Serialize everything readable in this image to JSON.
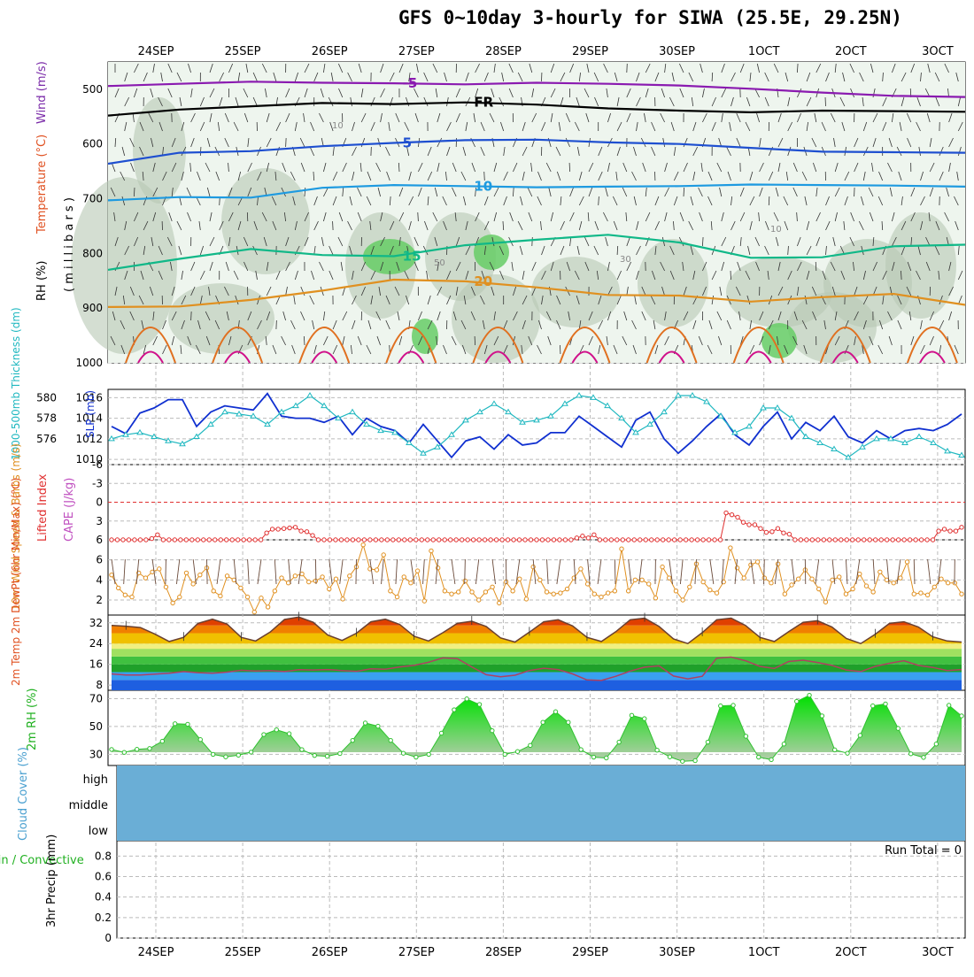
{
  "title": "GFS 0~10day 3-hourly for SIWA (25.5E, 29.25N)",
  "date_labels": [
    "24SEP",
    "25SEP",
    "26SEP",
    "27SEP",
    "28SEP",
    "29SEP",
    "30SEP",
    "1OCT",
    "2OCT",
    "3OCT"
  ],
  "run_total_text": "Run Total = 0",
  "colors": {
    "rh": "#28b428",
    "temp_label": "#e05020",
    "wind_label": "#7a2aa8",
    "blue": "#2030d0",
    "cyan": "#20b0c0",
    "red": "#e03030",
    "orange": "#e08000",
    "green": "#20b020",
    "cloud": "#6aaed6",
    "grid": "#bbbbbb"
  },
  "chart_data": [
    {
      "type": "heatmap",
      "panel": "upper_air",
      "axis_label_parts": {
        "rh": "RH (%)",
        "temp": "Temperature (°C)",
        "wind": "Wind (m/s)",
        "pressure": "( m i l l i b a r s )"
      },
      "yticks": [
        500,
        600,
        700,
        800,
        900,
        1000
      ],
      "ylim": [
        1000,
        450
      ],
      "isotherm_labels": {
        "minus5": "-5",
        "fr": "FR",
        "five": "5",
        "ten": "10",
        "fifteen": "15",
        "twenty": "20",
        "rh50": "50",
        "rh30": "30",
        "rh10": "10"
      },
      "isotherms": [
        {
          "name": "-5",
          "color": "#8a1ab0",
          "p": [
            494,
            490,
            486,
            488,
            489,
            491,
            488,
            490,
            493,
            499,
            506,
            512,
            514
          ]
        },
        {
          "name": "FR",
          "color": "#000000",
          "p": [
            548,
            537,
            531,
            525,
            527,
            524,
            528,
            535,
            539,
            542,
            539,
            540,
            541
          ]
        },
        {
          "name": "5",
          "color": "#1e4fd0",
          "p": [
            636,
            616,
            613,
            604,
            598,
            593,
            592,
            597,
            600,
            607,
            614,
            615,
            616
          ]
        },
        {
          "name": "10",
          "color": "#1e9ae0",
          "p": [
            703,
            697,
            698,
            680,
            675,
            677,
            679,
            678,
            677,
            674,
            675,
            676,
            678
          ]
        },
        {
          "name": "15",
          "color": "#10b888",
          "p": [
            830,
            810,
            792,
            803,
            805,
            785,
            775,
            766,
            780,
            808,
            807,
            787,
            784
          ]
        },
        {
          "name": "20",
          "color": "#e09020",
          "p": [
            898,
            897,
            885,
            868,
            848,
            851,
            862,
            876,
            877,
            888,
            880,
            874,
            894
          ]
        }
      ]
    },
    {
      "type": "line",
      "panel": "thickness_slp",
      "ylabel_left": "1000-500mb Thickness (dm)",
      "ylabel_right": "SLP (mb)",
      "yticks_left": [
        576,
        578,
        580
      ],
      "yticks_right": [
        1010,
        1012,
        1014,
        1016
      ],
      "ylim": [
        1009.5,
        1016.8
      ],
      "series": [
        {
          "name": "SLP (mb)",
          "color": "#1030d0",
          "values": [
            1013.2,
            1012.5,
            1014.5,
            1015.0,
            1015.8,
            1015.8,
            1013.2,
            1014.6,
            1015.2,
            1015.0,
            1014.8,
            1016.4,
            1014.2,
            1014.0,
            1014.0,
            1013.6,
            1014.2,
            1012.4,
            1014.0,
            1013.2,
            1012.8,
            1011.6,
            1013.4,
            1011.8,
            1010.2,
            1011.8,
            1012.2,
            1011.0,
            1012.4,
            1011.4,
            1011.6,
            1012.6,
            1012.6,
            1014.2,
            1013.2,
            1012.2,
            1011.2,
            1013.8,
            1014.6,
            1012.0,
            1010.6,
            1011.8,
            1013.2,
            1014.4,
            1012.4,
            1011.4,
            1013.2,
            1014.6,
            1012.0,
            1013.6,
            1012.8,
            1014.2,
            1012.2,
            1011.6,
            1012.8,
            1012.0,
            1012.8,
            1013.0,
            1012.8,
            1013.4,
            1014.4
          ]
        },
        {
          "name": "1000-500mb Thickness (dm)",
          "color": "#20b8c0",
          "marker": "triangle",
          "values": [
            1012.0,
            1012.4,
            1012.6,
            1012.2,
            1011.8,
            1011.5,
            1012.2,
            1013.4,
            1014.6,
            1014.4,
            1014.2,
            1013.4,
            1014.6,
            1015.2,
            1016.2,
            1015.2,
            1014.0,
            1014.6,
            1013.4,
            1012.8,
            1012.6,
            1011.6,
            1010.6,
            1011.2,
            1012.4,
            1013.8,
            1014.6,
            1015.4,
            1014.6,
            1013.6,
            1013.8,
            1014.2,
            1015.4,
            1016.2,
            1016.0,
            1015.2,
            1014.0,
            1012.6,
            1013.4,
            1014.6,
            1016.2,
            1016.2,
            1015.6,
            1014.2,
            1012.6,
            1013.2,
            1015.0,
            1015.0,
            1014.0,
            1012.2,
            1011.6,
            1011.0,
            1010.2,
            1011.2,
            1012.0,
            1012.0,
            1011.6,
            1012.2,
            1011.6,
            1010.8,
            1010.4
          ]
        }
      ]
    },
    {
      "type": "line",
      "panel": "cape_li",
      "ylabel_left": "Lifted Index",
      "ylabel_right": "CAPE (J/kg)",
      "yticks": [
        -6,
        -3,
        0,
        3,
        6
      ],
      "ylim": [
        6,
        -6
      ],
      "series": [
        {
          "name": "Lifted Index",
          "color": "#e03030",
          "values": [
            6,
            6,
            6,
            6,
            6,
            6,
            6,
            5.8,
            5.2,
            6,
            6,
            6,
            6,
            6,
            6,
            6,
            6,
            6,
            6,
            6,
            6,
            6,
            6,
            6,
            6,
            6,
            6,
            4.9,
            4.3,
            4.3,
            4.2,
            4.1,
            4.0,
            4.6,
            4.7,
            5.3,
            6,
            6,
            6,
            6,
            6,
            6,
            6,
            6,
            6,
            6,
            6,
            6,
            6,
            6,
            6,
            6,
            6,
            6,
            6,
            6,
            6,
            6,
            6,
            6,
            6,
            6,
            6,
            6,
            6,
            6,
            6,
            6,
            6,
            6,
            6,
            6,
            6,
            6,
            6,
            6,
            6,
            6,
            6,
            6,
            6,
            5.7,
            5.4,
            5.7,
            5.2,
            6,
            6,
            6,
            6,
            6,
            6,
            6,
            6,
            6,
            6,
            6,
            6,
            6,
            6,
            6,
            6,
            6,
            6,
            6,
            6,
            6,
            6,
            1.7,
            2.0,
            2.4,
            3.2,
            3.6,
            3.6,
            4.2,
            4.8,
            4.7,
            4.2,
            4.9,
            5.1,
            6,
            6,
            6,
            6,
            6,
            6,
            6,
            6,
            6,
            6,
            6,
            6,
            6,
            6,
            6,
            6,
            6,
            6,
            6,
            6,
            6,
            6,
            6,
            6,
            6,
            4.6,
            4.3,
            4.6,
            4.6,
            4.0
          ]
        }
      ]
    },
    {
      "type": "line",
      "panel": "wind10m",
      "ylabel": "10m Wind Speed & Barbs (m/s)",
      "yticks": [
        2,
        4,
        6
      ],
      "ylim": [
        0.5,
        8
      ],
      "series": [
        {
          "name": "10m Wind Speed",
          "color": "#e09020",
          "values": [
            4.5,
            3.2,
            2.5,
            2.3,
            4.7,
            4.2,
            4.8,
            5.1,
            3.3,
            1.7,
            2.3,
            4.7,
            3.6,
            4.5,
            5.2,
            2.9,
            2.4,
            4.4,
            4.0,
            3.2,
            2.3,
            0.8,
            2.2,
            1.3,
            2.9,
            4.2,
            3.7,
            4.4,
            4.6,
            3.8,
            3.9,
            4.3,
            3.1,
            4.1,
            2.1,
            4.4,
            5.3,
            7.5,
            5.1,
            5.0,
            6.5,
            2.9,
            2.3,
            4.3,
            3.7,
            4.9,
            1.9,
            6.9,
            5.2,
            2.9,
            2.6,
            2.8,
            3.9,
            2.8,
            2.0,
            2.8,
            3.3,
            1.7,
            3.8,
            2.9,
            4.1,
            2.1,
            5.3,
            4.0,
            2.8,
            2.6,
            2.7,
            3.1,
            4.2,
            5.1,
            3.6,
            2.6,
            2.3,
            2.7,
            2.9,
            7.1,
            2.9,
            4.0,
            4.0,
            3.6,
            2.2,
            5.3,
            4.2,
            2.9,
            2.0,
            3.3,
            5.6,
            3.8,
            3.0,
            2.7,
            3.8,
            7.2,
            5.2,
            4.2,
            5.5,
            5.8,
            4.2,
            3.7,
            5.6,
            2.6,
            3.5,
            4.1,
            5.0,
            4.1,
            3.1,
            1.8,
            4.0,
            4.3,
            2.6,
            3.1,
            4.6,
            3.4,
            2.8,
            4.8,
            4.0,
            3.7,
            4.2,
            5.8,
            2.6,
            2.7,
            2.5,
            3.3,
            4.1,
            3.7,
            3.7,
            2.6
          ]
        }
      ]
    },
    {
      "type": "area",
      "panel": "temp2m",
      "ylabel": "2m Temp 2m DewPt (6hr Min/Max) (°C)",
      "yticks": [
        8,
        16,
        24,
        32
      ],
      "ylim": [
        6,
        35
      ],
      "series": [
        {
          "name": "2m Temp",
          "color": "#6a4030",
          "values": [
            31.0,
            30.7,
            30.2,
            27.7,
            24.8,
            26.4,
            31.8,
            33.4,
            31.6,
            26.4,
            25.0,
            28.4,
            33.3,
            34.2,
            32.2,
            27.3,
            25.2,
            28.0,
            32.4,
            33.4,
            31.4,
            26.8,
            25.0,
            28.2,
            31.8,
            32.6,
            30.6,
            26.2,
            24.6,
            28.4,
            32.4,
            33.2,
            30.8,
            26.4,
            24.8,
            28.6,
            33.2,
            33.8,
            30.6,
            25.8,
            24.0,
            28.2,
            33.2,
            33.8,
            31.0,
            26.4,
            24.8,
            28.6,
            32.2,
            32.8,
            30.4,
            26.0,
            24.0,
            27.6,
            31.8,
            32.4,
            30.4,
            26.6,
            25.0,
            24.6
          ]
        },
        {
          "name": "2m DewPt",
          "color": "#b04060",
          "values": [
            12.3,
            11.9,
            11.9,
            12.2,
            12.6,
            13.2,
            12.8,
            12.6,
            13.0,
            13.7,
            13.4,
            13.6,
            13.2,
            13.9,
            13.8,
            14.0,
            13.6,
            13.3,
            14.3,
            14.1,
            15.0,
            15.6,
            16.8,
            18.5,
            18.2,
            15.0,
            12.0,
            11.2,
            11.8,
            13.6,
            14.5,
            14.0,
            12.3,
            10.0,
            9.8,
            11.4,
            13.4,
            14.9,
            15.4,
            11.5,
            10.4,
            11.4,
            18.4,
            18.8,
            17.4,
            15.2,
            14.4,
            17.1,
            17.6,
            16.7,
            15.6,
            13.8,
            13.2,
            15.2,
            16.4,
            17.4,
            15.6,
            14.8,
            13.6,
            14.0
          ]
        }
      ]
    },
    {
      "type": "area",
      "panel": "rh2m",
      "ylabel": "2m RH (%)",
      "yticks": [
        30,
        50,
        70
      ],
      "ylim": [
        22,
        76
      ],
      "series": [
        {
          "name": "2m RH",
          "color": "#30c030",
          "values": [
            33.5,
            31.4,
            33.6,
            34.2,
            39.4,
            52.0,
            51.6,
            40.6,
            30.0,
            28.2,
            29.4,
            31.6,
            44.2,
            47.6,
            44.8,
            33.4,
            29.2,
            28.6,
            30.6,
            40.0,
            52.5,
            50.2,
            40.0,
            30.8,
            28.0,
            30.0,
            45.2,
            62.0,
            69.8,
            65.8,
            47.0,
            30.0,
            32.0,
            36.4,
            53.0,
            60.6,
            53.0,
            33.4,
            28.0,
            27.4,
            38.8,
            58.0,
            55.6,
            33.0,
            28.2,
            25.0,
            25.5,
            38.8,
            64.8,
            65.2,
            43.0,
            28.0,
            26.2,
            37.4,
            68.0,
            72.4,
            57.6,
            33.2,
            30.8,
            43.6,
            64.8,
            66.2,
            48.6,
            30.4,
            27.8,
            37.4,
            65.2,
            57.6
          ]
        }
      ]
    },
    {
      "type": "area",
      "panel": "cloud",
      "ylabel": "Cloud Cover (%)",
      "yticklabels": [
        "high",
        "middle",
        "low"
      ]
    },
    {
      "type": "bar",
      "panel": "precip",
      "ylabel_left": "Total / Rain / Convective",
      "ylabel": "3hr Precip (mm)",
      "yticks": [
        0,
        0.2,
        0.4,
        0.6,
        0.8
      ],
      "ylim": [
        0,
        0.95
      ],
      "values": []
    }
  ]
}
